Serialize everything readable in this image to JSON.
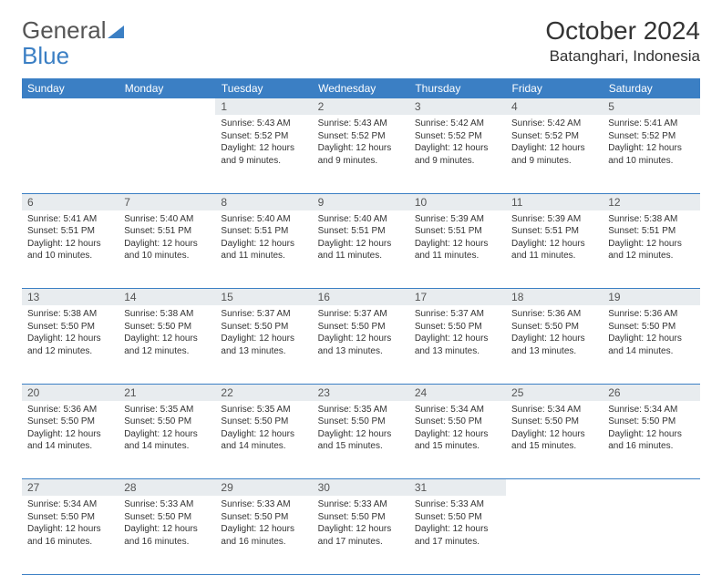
{
  "brand": {
    "part1": "General",
    "part2": "Blue"
  },
  "title": {
    "month": "October 2024",
    "location": "Batanghari, Indonesia"
  },
  "colors": {
    "accent": "#3b7fc4",
    "dayHeaderBg": "#e8ecef",
    "text": "#333333"
  },
  "weekdays": [
    "Sunday",
    "Monday",
    "Tuesday",
    "Wednesday",
    "Thursday",
    "Friday",
    "Saturday"
  ],
  "grid": {
    "weeks": [
      [
        null,
        null,
        {
          "n": "1",
          "sr": "5:43 AM",
          "ss": "5:52 PM",
          "dl": "12 hours and 9 minutes."
        },
        {
          "n": "2",
          "sr": "5:43 AM",
          "ss": "5:52 PM",
          "dl": "12 hours and 9 minutes."
        },
        {
          "n": "3",
          "sr": "5:42 AM",
          "ss": "5:52 PM",
          "dl": "12 hours and 9 minutes."
        },
        {
          "n": "4",
          "sr": "5:42 AM",
          "ss": "5:52 PM",
          "dl": "12 hours and 9 minutes."
        },
        {
          "n": "5",
          "sr": "5:41 AM",
          "ss": "5:52 PM",
          "dl": "12 hours and 10 minutes."
        }
      ],
      [
        {
          "n": "6",
          "sr": "5:41 AM",
          "ss": "5:51 PM",
          "dl": "12 hours and 10 minutes."
        },
        {
          "n": "7",
          "sr": "5:40 AM",
          "ss": "5:51 PM",
          "dl": "12 hours and 10 minutes."
        },
        {
          "n": "8",
          "sr": "5:40 AM",
          "ss": "5:51 PM",
          "dl": "12 hours and 11 minutes."
        },
        {
          "n": "9",
          "sr": "5:40 AM",
          "ss": "5:51 PM",
          "dl": "12 hours and 11 minutes."
        },
        {
          "n": "10",
          "sr": "5:39 AM",
          "ss": "5:51 PM",
          "dl": "12 hours and 11 minutes."
        },
        {
          "n": "11",
          "sr": "5:39 AM",
          "ss": "5:51 PM",
          "dl": "12 hours and 11 minutes."
        },
        {
          "n": "12",
          "sr": "5:38 AM",
          "ss": "5:51 PM",
          "dl": "12 hours and 12 minutes."
        }
      ],
      [
        {
          "n": "13",
          "sr": "5:38 AM",
          "ss": "5:50 PM",
          "dl": "12 hours and 12 minutes."
        },
        {
          "n": "14",
          "sr": "5:38 AM",
          "ss": "5:50 PM",
          "dl": "12 hours and 12 minutes."
        },
        {
          "n": "15",
          "sr": "5:37 AM",
          "ss": "5:50 PM",
          "dl": "12 hours and 13 minutes."
        },
        {
          "n": "16",
          "sr": "5:37 AM",
          "ss": "5:50 PM",
          "dl": "12 hours and 13 minutes."
        },
        {
          "n": "17",
          "sr": "5:37 AM",
          "ss": "5:50 PM",
          "dl": "12 hours and 13 minutes."
        },
        {
          "n": "18",
          "sr": "5:36 AM",
          "ss": "5:50 PM",
          "dl": "12 hours and 13 minutes."
        },
        {
          "n": "19",
          "sr": "5:36 AM",
          "ss": "5:50 PM",
          "dl": "12 hours and 14 minutes."
        }
      ],
      [
        {
          "n": "20",
          "sr": "5:36 AM",
          "ss": "5:50 PM",
          "dl": "12 hours and 14 minutes."
        },
        {
          "n": "21",
          "sr": "5:35 AM",
          "ss": "5:50 PM",
          "dl": "12 hours and 14 minutes."
        },
        {
          "n": "22",
          "sr": "5:35 AM",
          "ss": "5:50 PM",
          "dl": "12 hours and 14 minutes."
        },
        {
          "n": "23",
          "sr": "5:35 AM",
          "ss": "5:50 PM",
          "dl": "12 hours and 15 minutes."
        },
        {
          "n": "24",
          "sr": "5:34 AM",
          "ss": "5:50 PM",
          "dl": "12 hours and 15 minutes."
        },
        {
          "n": "25",
          "sr": "5:34 AM",
          "ss": "5:50 PM",
          "dl": "12 hours and 15 minutes."
        },
        {
          "n": "26",
          "sr": "5:34 AM",
          "ss": "5:50 PM",
          "dl": "12 hours and 16 minutes."
        }
      ],
      [
        {
          "n": "27",
          "sr": "5:34 AM",
          "ss": "5:50 PM",
          "dl": "12 hours and 16 minutes."
        },
        {
          "n": "28",
          "sr": "5:33 AM",
          "ss": "5:50 PM",
          "dl": "12 hours and 16 minutes."
        },
        {
          "n": "29",
          "sr": "5:33 AM",
          "ss": "5:50 PM",
          "dl": "12 hours and 16 minutes."
        },
        {
          "n": "30",
          "sr": "5:33 AM",
          "ss": "5:50 PM",
          "dl": "12 hours and 17 minutes."
        },
        {
          "n": "31",
          "sr": "5:33 AM",
          "ss": "5:50 PM",
          "dl": "12 hours and 17 minutes."
        },
        null,
        null
      ]
    ]
  },
  "labels": {
    "sunrise": "Sunrise:",
    "sunset": "Sunset:",
    "daylight": "Daylight:"
  }
}
